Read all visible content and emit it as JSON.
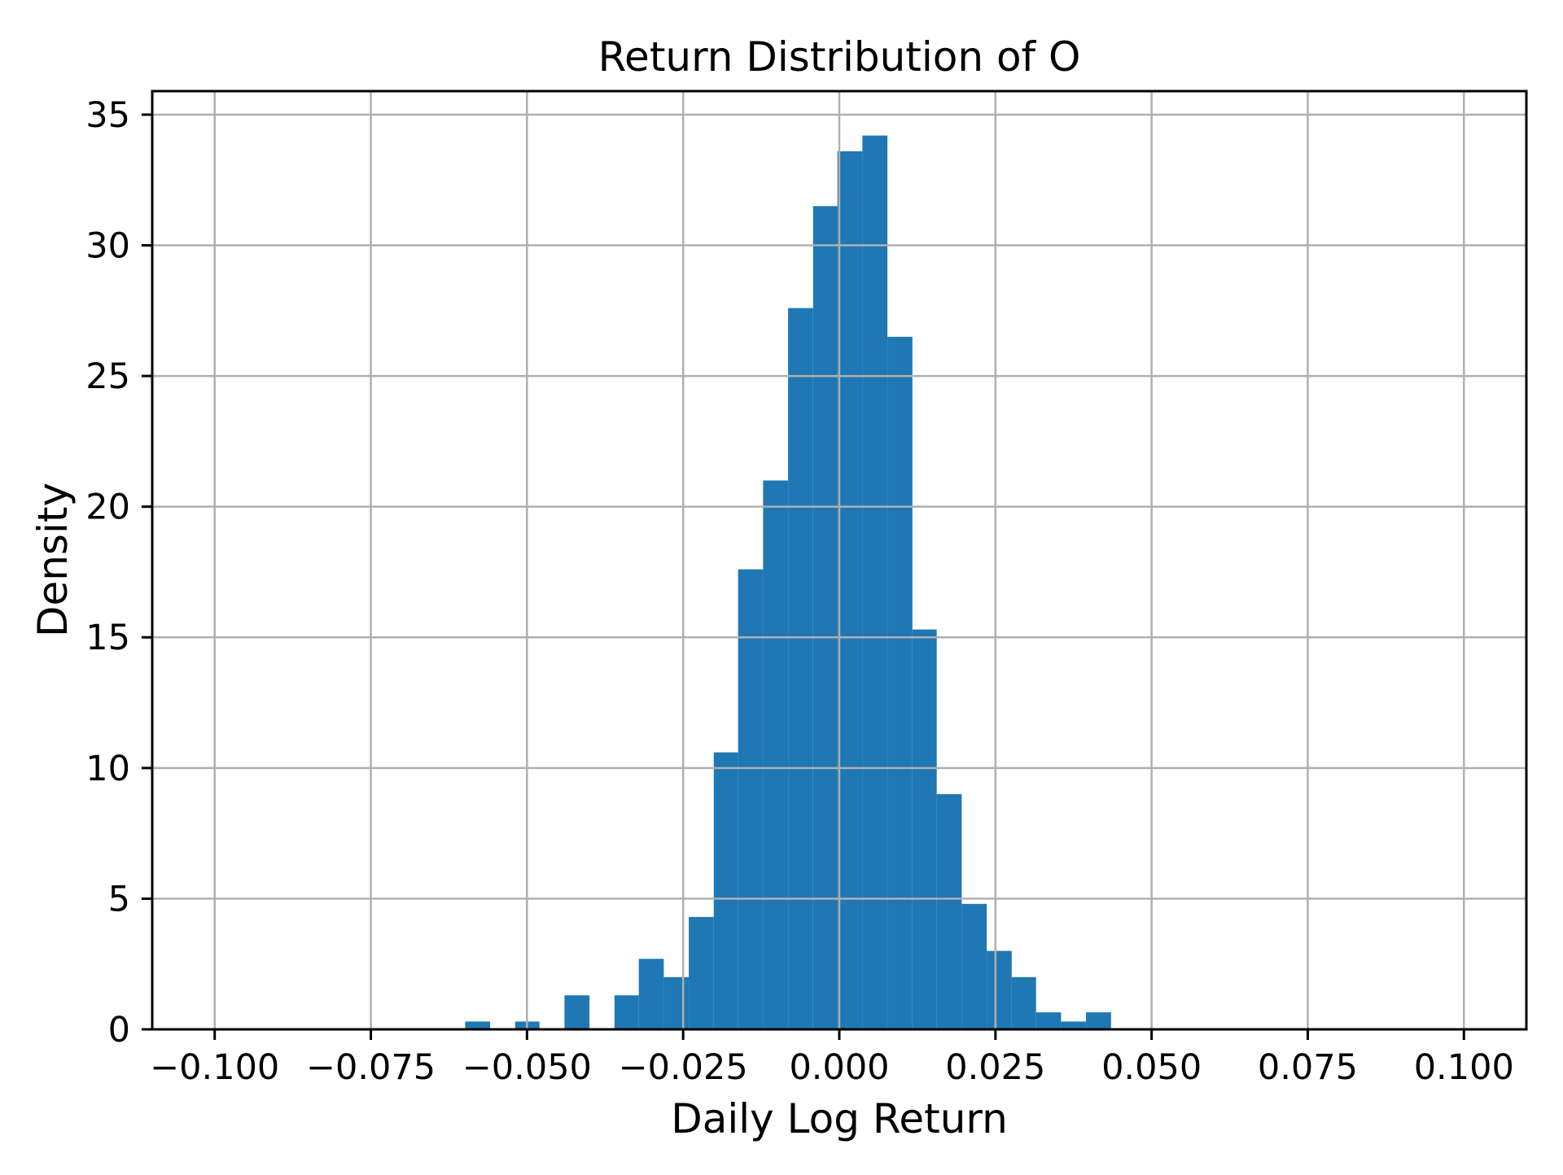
{
  "chart_data": {
    "type": "bar",
    "variant": "histogram",
    "title": "Return Distribution of O",
    "xlabel": "Daily Log Return",
    "ylabel": "Density",
    "xlim": [
      -0.11,
      0.11
    ],
    "ylim": [
      0,
      35.9
    ],
    "grid": true,
    "legend": false,
    "bin_width": 0.004,
    "colors": {
      "bar": "#1f77b4",
      "grid": "#b0b0b0",
      "spine": "#000000",
      "text": "#000000",
      "background": "#ffffff"
    },
    "xticks": {
      "values": [
        -0.1,
        -0.075,
        -0.05,
        -0.025,
        0.0,
        0.025,
        0.05,
        0.075,
        0.1
      ],
      "labels": [
        "−0.100",
        "−0.075",
        "−0.050",
        "−0.025",
        "0.000",
        "0.025",
        "0.050",
        "0.075",
        "0.100"
      ]
    },
    "yticks": {
      "values": [
        0,
        5,
        10,
        15,
        20,
        25,
        30,
        35
      ],
      "labels": [
        "0",
        "5",
        "10",
        "15",
        "20",
        "25",
        "30",
        "35"
      ]
    },
    "bins": {
      "edges": [
        -0.0599,
        -0.0559,
        -0.0519,
        -0.048,
        -0.044,
        -0.04,
        -0.036,
        -0.0321,
        -0.0281,
        -0.0241,
        -0.0201,
        -0.0162,
        -0.0122,
        -0.0082,
        -0.0042,
        -0.0003,
        0.0037,
        0.0077,
        0.0117,
        0.0156,
        0.0196,
        0.0236,
        0.0276,
        0.0315,
        0.0355,
        0.0395,
        0.0435
      ],
      "densities": [
        0.3,
        0,
        0.3,
        0,
        1.3,
        0,
        1.3,
        2.7,
        2.0,
        4.3,
        10.6,
        17.6,
        21.0,
        27.6,
        31.5,
        33.6,
        34.2,
        26.5,
        15.3,
        9.0,
        4.8,
        3.0,
        2.0,
        0.65,
        0.3,
        0.65
      ]
    }
  }
}
